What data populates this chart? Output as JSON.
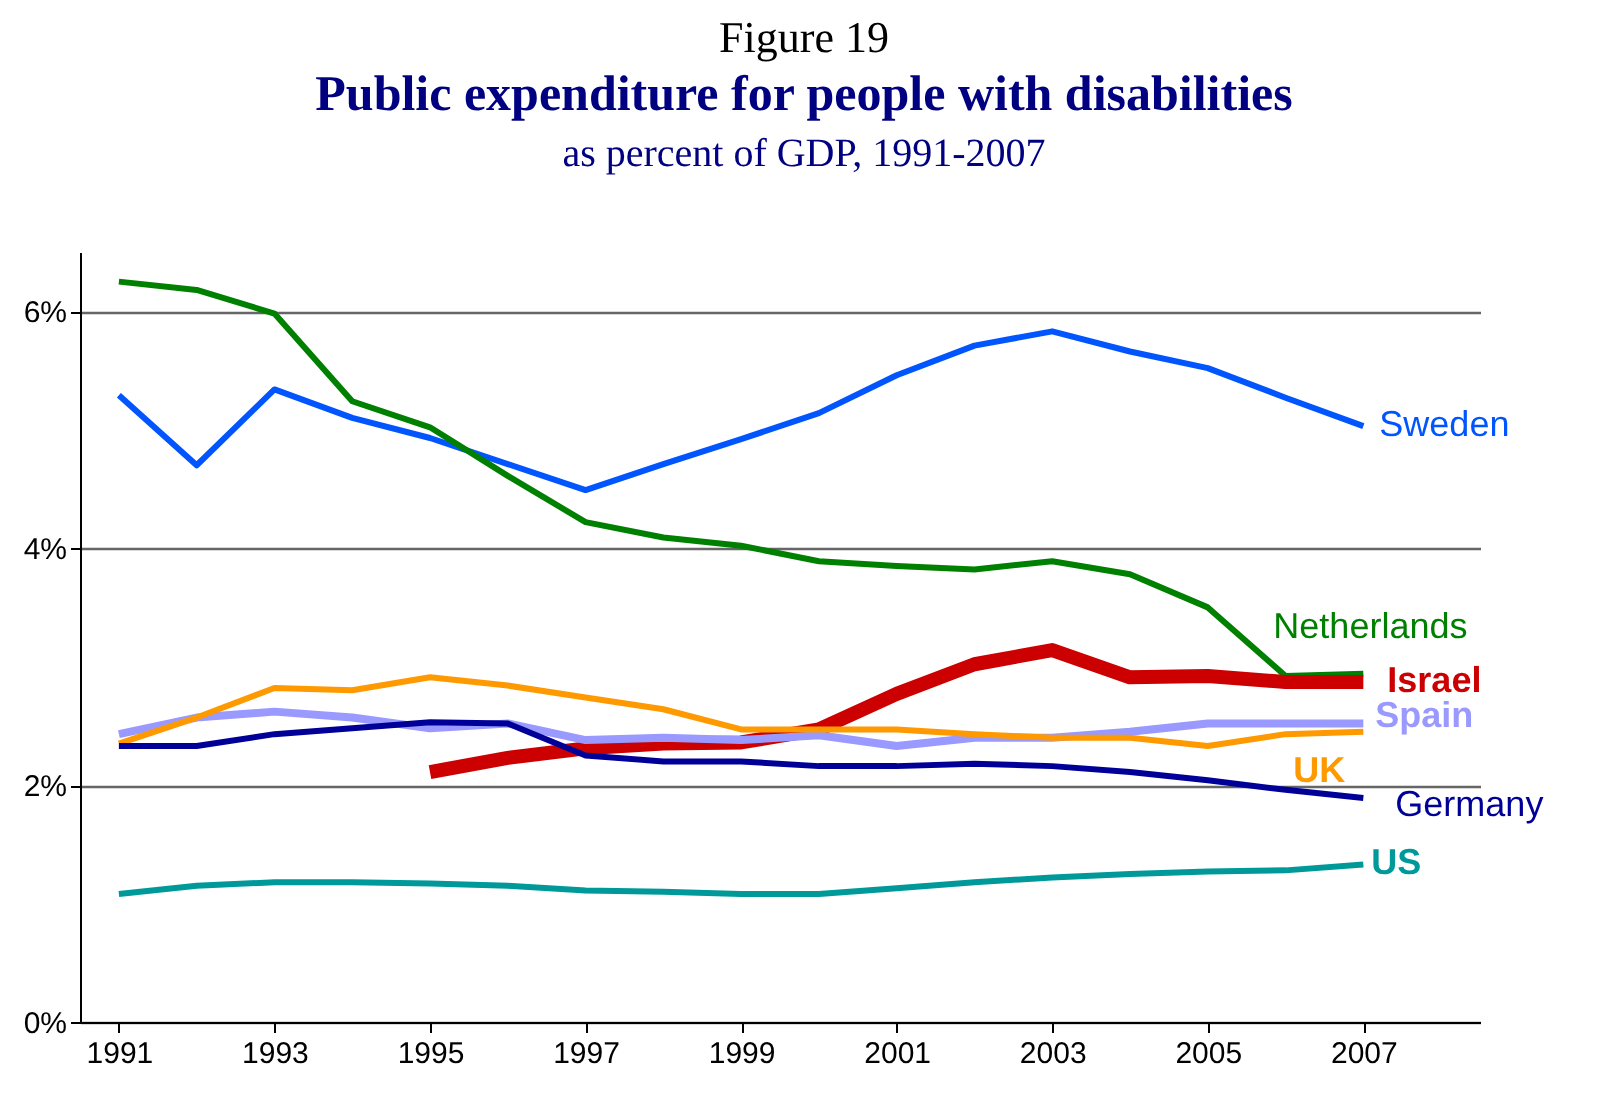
{
  "chart_data": {
    "type": "line",
    "title": "Public expenditure for people with disabilities",
    "subtitle": "as percent of GDP, 1991-2007",
    "annotations": [
      "Figure 19"
    ],
    "x": [
      1991,
      1992,
      1993,
      1994,
      1995,
      1996,
      1997,
      1998,
      1999,
      2000,
      2001,
      2002,
      2003,
      2004,
      2005,
      2006,
      2007
    ],
    "series": [
      {
        "name": "Sweden",
        "color": "#0055ff",
        "values": [
          5.29,
          4.7,
          5.34,
          5.1,
          4.93,
          4.71,
          4.49,
          4.71,
          4.92,
          5.14,
          5.46,
          5.71,
          5.83,
          5.66,
          5.52,
          5.27,
          5.03
        ]
      },
      {
        "name": "Netherlands",
        "color": "#008000",
        "values": [
          6.25,
          6.18,
          5.98,
          5.24,
          5.02,
          4.61,
          4.22,
          4.09,
          4.02,
          3.89,
          3.85,
          3.82,
          3.89,
          3.78,
          3.5,
          2.92,
          2.94
        ]
      },
      {
        "name": "Israel",
        "color": "#cc0000",
        "values": [
          null,
          null,
          null,
          null,
          2.11,
          2.23,
          2.31,
          2.35,
          2.36,
          2.47,
          2.77,
          3.02,
          3.14,
          2.91,
          2.92,
          2.87,
          2.87
        ]
      },
      {
        "name": "Spain",
        "color": "#9999ff",
        "values": [
          2.43,
          2.57,
          2.62,
          2.57,
          2.48,
          2.52,
          2.38,
          2.4,
          2.38,
          2.42,
          2.33,
          2.4,
          2.4,
          2.45,
          2.52,
          2.52,
          2.52
        ]
      },
      {
        "name": "UK",
        "color": "#ff9900",
        "values": [
          2.35,
          2.57,
          2.82,
          2.8,
          2.91,
          2.84,
          2.74,
          2.64,
          2.47,
          2.47,
          2.47,
          2.43,
          2.4,
          2.4,
          2.33,
          2.43,
          2.45
        ]
      },
      {
        "name": "Germany",
        "color": "#000099",
        "values": [
          2.33,
          2.33,
          2.43,
          2.48,
          2.53,
          2.52,
          2.25,
          2.2,
          2.2,
          2.16,
          2.16,
          2.18,
          2.16,
          2.11,
          2.04,
          1.96,
          1.89
        ]
      },
      {
        "name": "US",
        "color": "#009999",
        "values": [
          1.08,
          1.15,
          1.18,
          1.18,
          1.17,
          1.15,
          1.11,
          1.1,
          1.08,
          1.08,
          1.13,
          1.18,
          1.22,
          1.25,
          1.27,
          1.28,
          1.33
        ]
      }
    ],
    "xlim": [
      1990.5,
      2008.5
    ],
    "xticks": [
      1991,
      1993,
      1995,
      1997,
      1999,
      2001,
      2003,
      2005,
      2007
    ],
    "ylim": [
      0,
      6.5
    ],
    "yticks": [
      {
        "value": 0,
        "label": "0%"
      },
      {
        "value": 2,
        "label": "2%"
      },
      {
        "value": 4,
        "label": "4%"
      },
      {
        "value": 6,
        "label": "6%"
      }
    ],
    "grid": "y",
    "legend": false,
    "marker": "none",
    "line_style": "solid"
  }
}
